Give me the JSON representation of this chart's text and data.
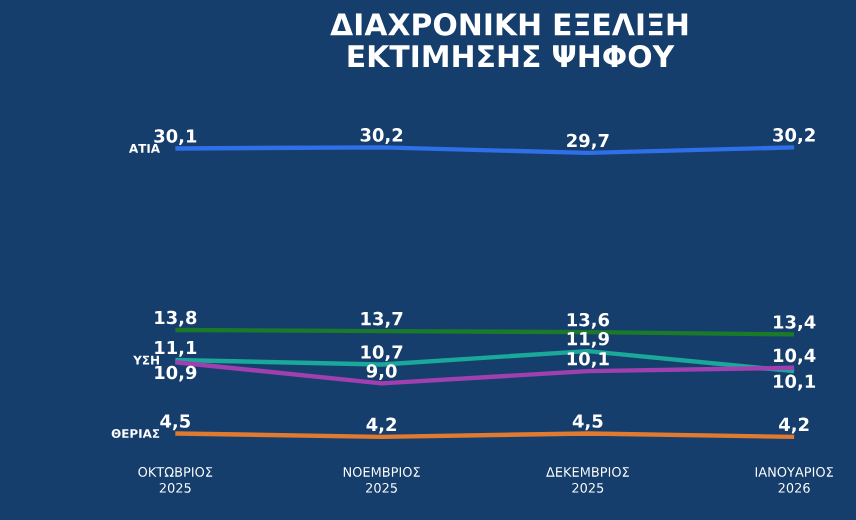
{
  "chart_data": {
    "type": "line",
    "title": "ΔΙΑΧΡΟΝΙΚΗ ΕΞΕΛΙΞΗ ΕΚΤΙΜΗΣΗΣ ΨΗΦΟΥ",
    "categories": [
      "ΟΚΤΩΒΡΙΟΣ 2025",
      "ΝΟΕΜΒΡΙΟΣ 2025",
      "ΔΕΚΕΜΒΡΙΟΣ 2025",
      "ΙΑΝΟΥΑΡΙΟΣ 2026"
    ],
    "series": [
      {
        "name": "ΑΤΙΑ",
        "color": "#2f6fe8",
        "values": [
          30.1,
          30.2,
          29.7,
          30.2
        ],
        "value_labels": [
          "30,1",
          "30,2",
          "29,7",
          "30,2"
        ]
      },
      {
        "color": "#1a7a2a",
        "values": [
          13.8,
          13.7,
          13.6,
          13.4
        ],
        "value_labels": [
          "13,8",
          "13,7",
          "13,6",
          "13,4"
        ]
      },
      {
        "name": "ΥΣΗ",
        "color": "#1aa89a",
        "values": [
          11.1,
          10.7,
          11.9,
          10.1
        ],
        "value_labels": [
          "11,1",
          "10,7",
          "11,9",
          "10,1"
        ]
      },
      {
        "color": "#a040b0",
        "values": [
          10.9,
          9.0,
          10.1,
          10.4
        ],
        "value_labels": [
          "10,9",
          "9,0",
          "10,1",
          "10,4"
        ]
      },
      {
        "name": "ΘΕΡΙΑΣ",
        "color": "#e07a30",
        "values": [
          4.5,
          4.2,
          4.5,
          4.2
        ],
        "value_labels": [
          "4,5",
          "4,2",
          "4,5",
          "4,2"
        ]
      }
    ],
    "marker": "none",
    "line_style": "solid",
    "grid": false,
    "legend": false,
    "tick_labels": "x"
  }
}
